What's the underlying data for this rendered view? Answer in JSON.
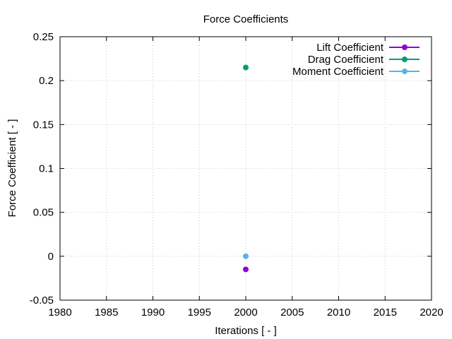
{
  "chart_data": {
    "type": "scatter",
    "title": "Force Coefficients",
    "xlabel": "Iterations [ - ]",
    "ylabel": "Force Coefficient [ - ]",
    "xlim": [
      1980,
      2020
    ],
    "ylim": [
      -0.05,
      0.25
    ],
    "x_ticks": [
      1980,
      1985,
      1990,
      1995,
      2000,
      2005,
      2010,
      2015,
      2020
    ],
    "y_ticks": [
      -0.05,
      0,
      0.05,
      0.1,
      0.15,
      0.2,
      0.25
    ],
    "x_tick_labels": [
      "1980",
      "1985",
      "1990",
      "1995",
      "2000",
      "2005",
      "2010",
      "2015",
      "2020"
    ],
    "y_tick_labels": [
      "-0.05",
      "0",
      "0.05",
      "0.1",
      "0.15",
      "0.2",
      "0.25"
    ],
    "grid": true,
    "legend_position": "top-right",
    "series": [
      {
        "name": "Lift Coefficient",
        "color": "#9400d3",
        "x": [
          2000
        ],
        "y": [
          -0.015
        ]
      },
      {
        "name": "Drag Coefficient",
        "color": "#009e73",
        "x": [
          2000
        ],
        "y": [
          0.215
        ]
      },
      {
        "name": "Moment Coefficient",
        "color": "#56b4e9",
        "x": [
          2000
        ],
        "y": [
          0.0
        ]
      }
    ]
  }
}
